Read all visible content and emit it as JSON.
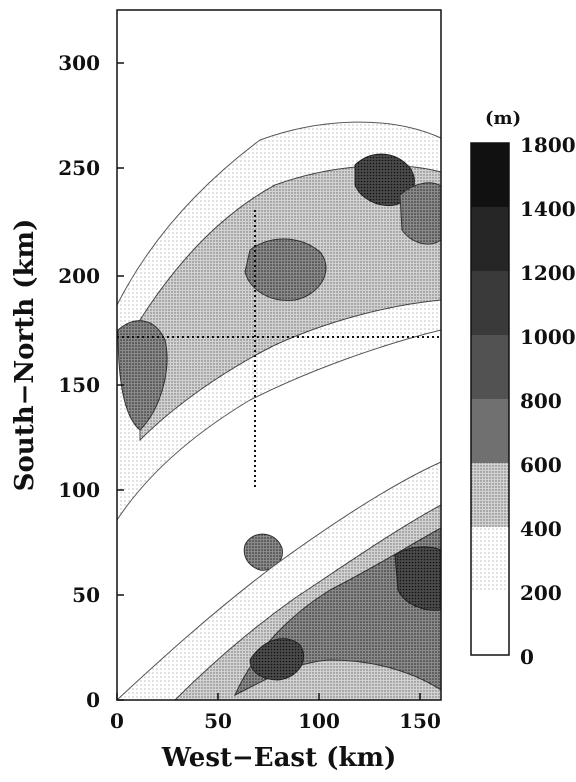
{
  "map": {
    "xlabel": "West−East (km)",
    "ylabel": "South−North (km)",
    "x_ticks": [
      "0",
      "50",
      "100",
      "150"
    ],
    "y_ticks": [
      "0",
      "50",
      "100",
      "150",
      "200",
      "250",
      "300"
    ],
    "x_range": [
      0,
      160
    ],
    "y_range": [
      0,
      320
    ],
    "cross_section_x": 68,
    "cross_section_y": 170
  },
  "colorbar": {
    "unit": "(m)",
    "levels": [
      "1800",
      "1400",
      "1200",
      "1000",
      "800",
      "600",
      "400",
      "200",
      "0"
    ]
  }
}
